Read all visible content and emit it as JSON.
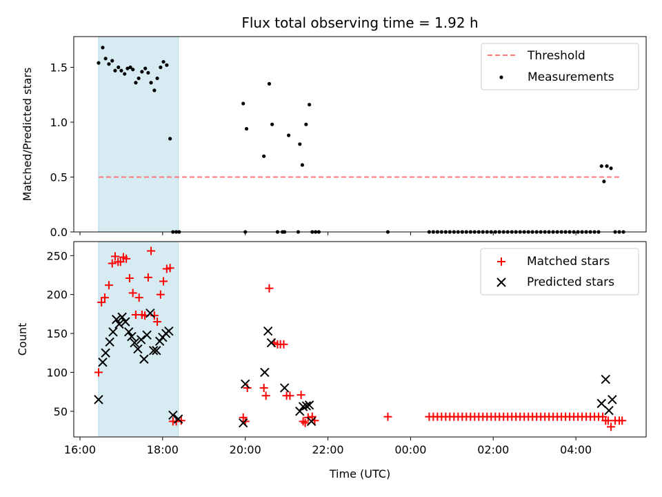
{
  "figure": {
    "title": "Flux total observing time = 1.92 h",
    "shade_color": "#add8e6"
  },
  "chart_data": [
    {
      "type": "scatter",
      "ylabel": "Matched/Predicted stars",
      "xlabel": "",
      "x_unit": "hours since 16:00 UTC",
      "xlim": [
        15.85,
        29.7
      ],
      "ylim": [
        0,
        1.78
      ],
      "yticks": [
        0.0,
        0.5,
        1.0,
        1.5
      ],
      "ytick_labels": [
        "0.0",
        "0.5",
        "1.0",
        "1.5"
      ],
      "xticks": [
        16,
        18,
        20,
        22,
        24,
        26,
        28
      ],
      "shaded_span": [
        16.45,
        18.38
      ],
      "threshold": {
        "name": "Threshold",
        "value": 0.5,
        "x_range": [
          16.45,
          29.1
        ],
        "color": "#ff7777"
      },
      "legend": {
        "position": "top-right",
        "entries": [
          "Threshold",
          "Measurements"
        ]
      },
      "series": [
        {
          "name": "Measurements",
          "color": "#000000",
          "marker": "dot",
          "x": [
            16.45,
            16.55,
            16.62,
            16.7,
            16.78,
            16.85,
            16.93,
            17.0,
            17.08,
            17.15,
            17.22,
            17.28,
            17.35,
            17.42,
            17.5,
            17.58,
            17.65,
            17.72,
            17.8,
            17.87,
            17.95,
            18.02,
            18.1,
            18.18,
            18.25,
            18.33,
            18.4,
            20.0,
            19.95,
            20.03,
            20.45,
            20.58,
            20.65,
            20.78,
            20.9,
            20.95,
            21.05,
            21.28,
            21.32,
            21.38,
            21.47,
            21.55,
            21.62,
            21.7,
            21.78,
            23.45,
            24.45,
            24.55,
            24.65,
            24.75,
            24.85,
            24.95,
            25.05,
            25.15,
            25.25,
            25.35,
            25.45,
            25.55,
            25.65,
            25.75,
            25.85,
            25.95,
            26.05,
            26.15,
            26.25,
            26.35,
            26.45,
            26.55,
            26.65,
            26.75,
            26.85,
            26.95,
            27.05,
            27.15,
            27.25,
            27.35,
            27.45,
            27.55,
            27.65,
            27.75,
            27.85,
            27.95,
            28.05,
            28.15,
            28.25,
            28.35,
            28.45,
            28.55,
            28.62,
            28.68,
            28.75,
            28.85,
            28.95,
            29.05,
            29.15
          ],
          "y": [
            1.54,
            1.68,
            1.58,
            1.53,
            1.56,
            1.47,
            1.5,
            1.47,
            1.44,
            1.49,
            1.5,
            1.48,
            1.36,
            1.4,
            1.46,
            1.49,
            1.45,
            1.36,
            1.29,
            1.4,
            1.5,
            1.55,
            1.52,
            0.85,
            0.0,
            0.0,
            0.0,
            0.0,
            1.17,
            0.94,
            0.69,
            1.35,
            0.98,
            0.0,
            0.0,
            0.0,
            0.88,
            0.0,
            0.8,
            0.61,
            0.98,
            1.16,
            0.0,
            0.0,
            0.0,
            0.0,
            0.0,
            0.0,
            0.0,
            0.0,
            0.0,
            0.0,
            0.0,
            0.0,
            0.0,
            0.0,
            0.0,
            0.0,
            0.0,
            0.0,
            0.0,
            0.0,
            0.0,
            0.0,
            0.0,
            0.0,
            0.0,
            0.0,
            0.0,
            0.0,
            0.0,
            0.0,
            0.0,
            0.0,
            0.0,
            0.0,
            0.0,
            0.0,
            0.0,
            0.0,
            0.0,
            0.0,
            0.0,
            0.0,
            0.0,
            0.0,
            0.0,
            0.0,
            0.6,
            0.46,
            0.6,
            0.58,
            0.0,
            0.0,
            0.0
          ]
        }
      ]
    },
    {
      "type": "scatter",
      "ylabel": "Count",
      "xlabel": "Time (UTC)",
      "x_unit": "hours since 16:00 UTC",
      "xlim": [
        15.85,
        29.7
      ],
      "ylim": [
        17,
        268
      ],
      "yticks": [
        50,
        100,
        150,
        200,
        250
      ],
      "ytick_labels": [
        "50",
        "100",
        "150",
        "200",
        "250"
      ],
      "xticks": [
        16,
        18,
        20,
        22,
        24,
        26,
        28
      ],
      "xtick_labels": [
        "16:00",
        "18:00",
        "20:00",
        "22:00",
        "00:00",
        "02:00",
        "04:00"
      ],
      "shaded_span": [
        16.45,
        18.38
      ],
      "legend": {
        "position": "top-right",
        "entries": [
          "Matched stars",
          "Predicted stars"
        ]
      },
      "series": [
        {
          "name": "Matched stars",
          "color": "#ff0000",
          "marker": "plus",
          "x": [
            16.45,
            16.52,
            16.6,
            16.7,
            16.78,
            16.85,
            16.92,
            16.98,
            17.05,
            17.12,
            17.2,
            17.28,
            17.35,
            17.43,
            17.5,
            17.57,
            17.65,
            17.72,
            17.8,
            17.87,
            17.95,
            18.02,
            18.1,
            18.18,
            18.25,
            18.33,
            18.45,
            19.95,
            20.0,
            20.05,
            20.45,
            20.5,
            20.58,
            20.7,
            20.78,
            20.85,
            20.93,
            21.0,
            21.08,
            21.35,
            21.4,
            21.45,
            21.52,
            21.62,
            21.68,
            23.45,
            24.45,
            24.55,
            24.65,
            24.75,
            24.85,
            24.95,
            25.05,
            25.15,
            25.25,
            25.35,
            25.45,
            25.55,
            25.65,
            25.75,
            25.85,
            25.95,
            26.05,
            26.15,
            26.25,
            26.35,
            26.45,
            26.55,
            26.65,
            26.75,
            26.85,
            26.95,
            27.05,
            27.15,
            27.25,
            27.35,
            27.45,
            27.55,
            27.65,
            27.75,
            27.85,
            27.95,
            28.05,
            28.15,
            28.25,
            28.35,
            28.45,
            28.55,
            28.65,
            28.72,
            28.78,
            28.85,
            28.95,
            29.05,
            29.12
          ],
          "y": [
            100,
            190,
            196,
            212,
            240,
            249,
            242,
            242,
            248,
            246,
            221,
            202,
            174,
            196,
            174,
            173,
            222,
            256,
            173,
            165,
            200,
            217,
            233,
            234,
            37,
            37,
            38,
            42,
            37,
            80,
            80,
            70,
            208,
            138,
            136,
            136,
            136,
            70,
            70,
            71,
            37,
            35,
            42,
            43,
            38,
            43,
            43,
            43,
            43,
            43,
            43,
            43,
            43,
            43,
            43,
            43,
            43,
            43,
            43,
            43,
            43,
            43,
            43,
            43,
            43,
            43,
            43,
            43,
            43,
            43,
            43,
            43,
            43,
            43,
            43,
            43,
            43,
            43,
            43,
            43,
            43,
            43,
            43,
            43,
            43,
            43,
            43,
            43,
            43,
            38,
            38,
            30,
            38,
            38,
            38
          ]
        },
        {
          "name": "Predicted stars",
          "color": "#000000",
          "marker": "x",
          "x": [
            16.45,
            16.55,
            16.62,
            16.72,
            16.8,
            16.88,
            16.95,
            17.02,
            17.1,
            17.18,
            17.25,
            17.32,
            17.4,
            17.48,
            17.55,
            17.62,
            17.7,
            17.78,
            17.85,
            17.93,
            18.0,
            18.08,
            18.15,
            18.25,
            18.38,
            19.95,
            20.0,
            20.47,
            20.55,
            20.63,
            20.95,
            21.32,
            21.4,
            21.48,
            21.55,
            21.6,
            28.62,
            28.72,
            28.8,
            28.88
          ],
          "y": [
            65,
            113,
            125,
            139,
            152,
            168,
            162,
            171,
            165,
            152,
            146,
            138,
            130,
            142,
            117,
            148,
            176,
            128,
            128,
            140,
            145,
            150,
            153,
            45,
            40,
            35,
            85,
            100,
            153,
            138,
            80,
            50,
            56,
            57,
            58,
            37,
            60,
            91,
            51,
            65
          ]
        }
      ]
    }
  ]
}
